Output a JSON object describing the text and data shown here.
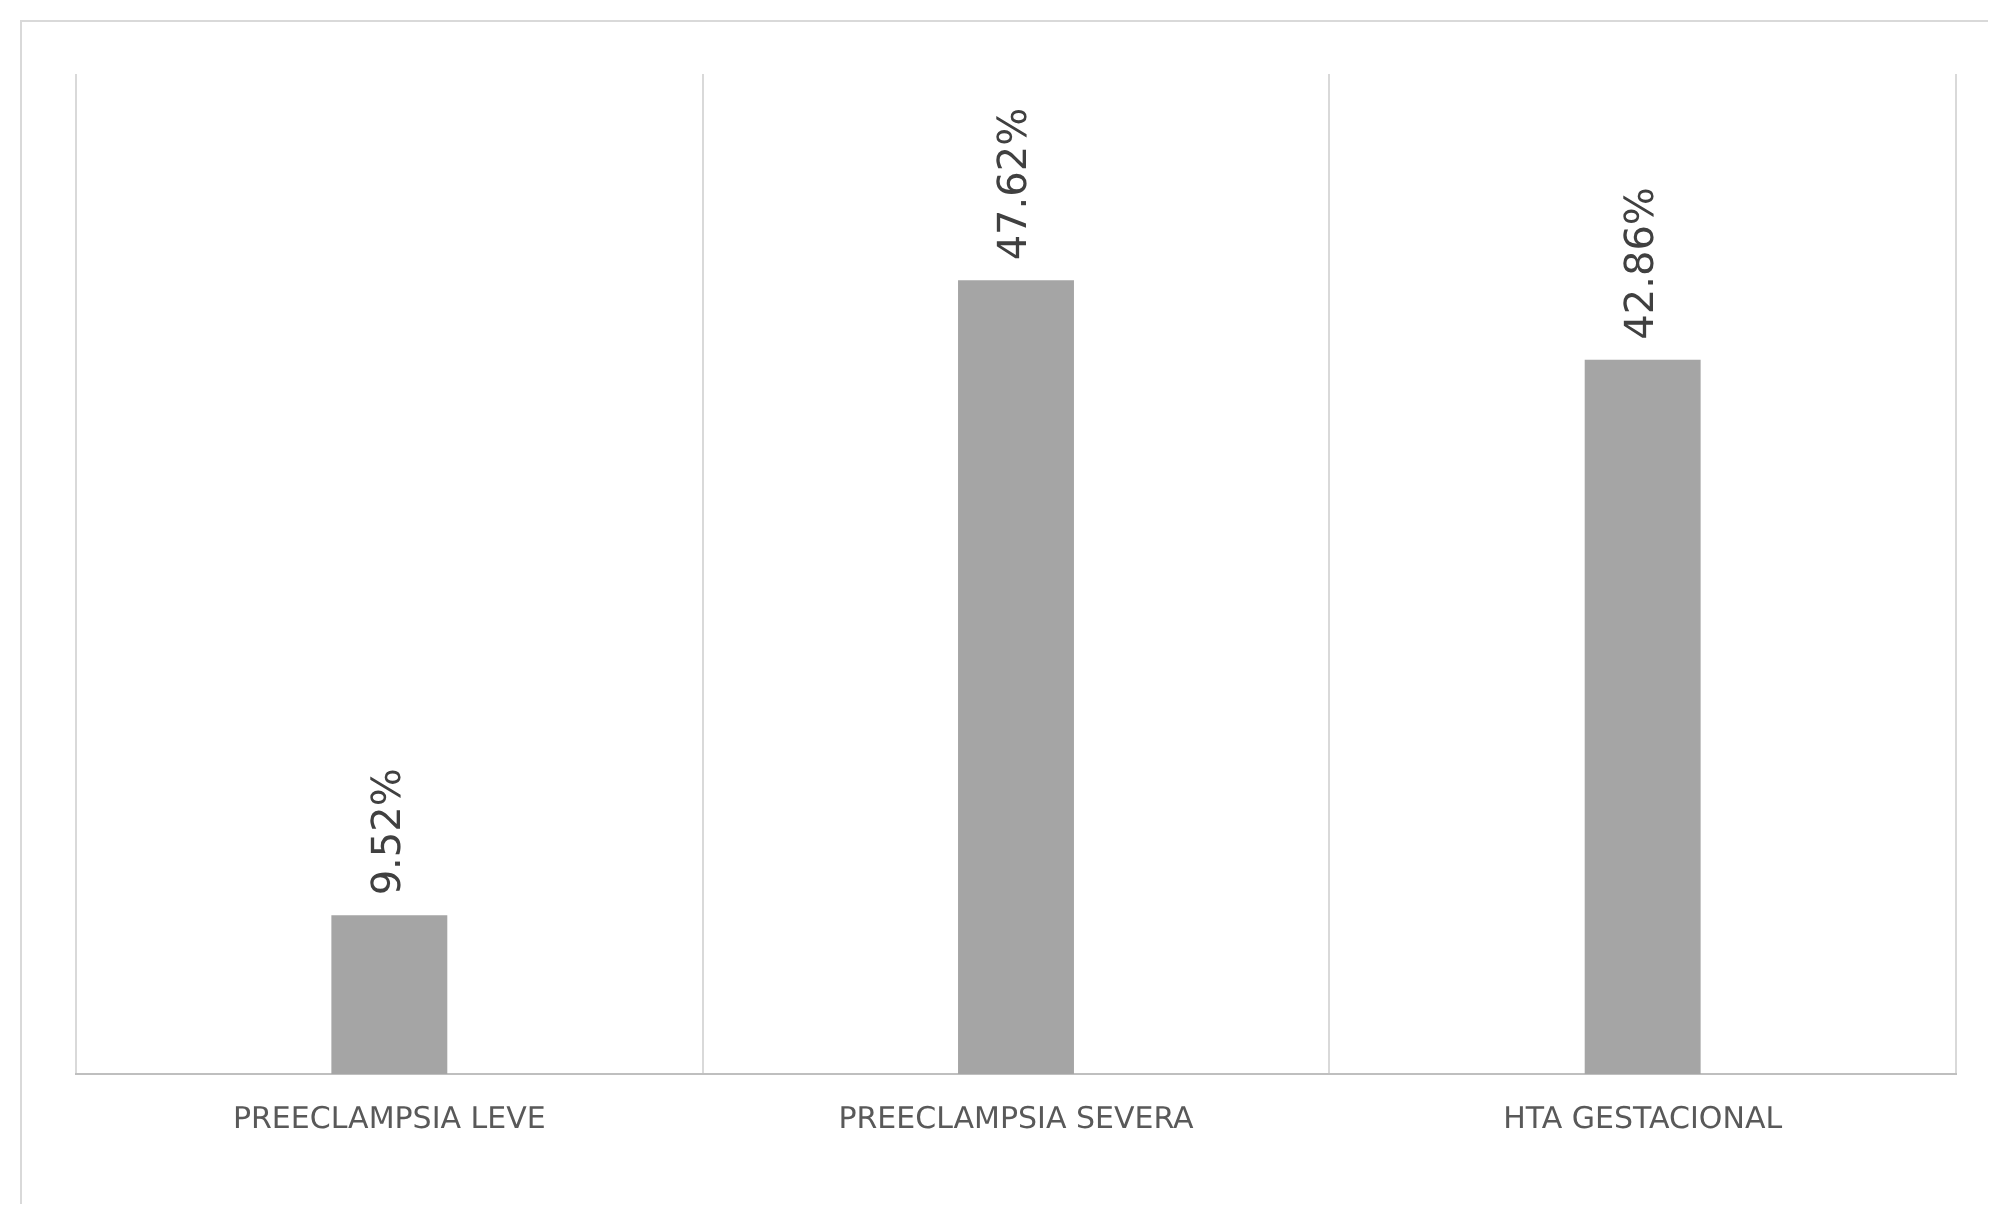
{
  "chart_data": {
    "type": "bar",
    "categories": [
      "PREECLAMPSIA LEVE",
      "PREECLAMPSIA SEVERA",
      "HTA GESTACIONAL"
    ],
    "values": [
      9.52,
      47.62,
      42.86
    ],
    "value_labels": [
      "9.52%",
      "47.62%",
      "42.86%"
    ],
    "color": "#a5a5a5",
    "ylim": [
      0,
      60
    ],
    "grid": "x",
    "legend": false
  }
}
